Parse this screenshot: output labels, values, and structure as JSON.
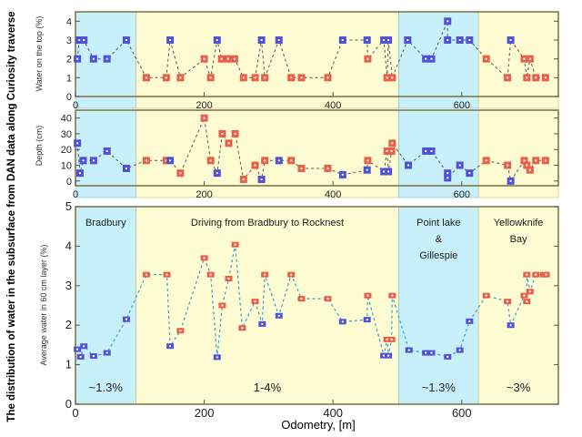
{
  "figure_title": "The distribution of water in the subsurface from DAN data along Curiosity traverse",
  "colors": {
    "wet": "#e8604a",
    "dry": "#5050d8",
    "blue_region": "#c8f0fa",
    "yellow_region": "#fdfbd2",
    "bottom_line": "#3aa0d8",
    "top_line": "#555555"
  },
  "chart_data": [
    {
      "type": "scatter",
      "ylabel": "Water on the top (%)",
      "xlim": [
        0,
        750
      ],
      "ylim": [
        0,
        4.5
      ],
      "xticks": [
        "0",
        "200",
        "400",
        "600"
      ],
      "yticks": [
        "0",
        "1",
        "2",
        "3",
        "4"
      ],
      "points": [
        [
          3,
          2,
          "b"
        ],
        [
          6,
          3,
          "b"
        ],
        [
          13,
          3,
          "b"
        ],
        [
          28,
          2,
          "b"
        ],
        [
          49,
          2,
          "b"
        ],
        [
          79,
          3,
          "b"
        ],
        [
          110,
          1,
          "r"
        ],
        [
          141,
          1,
          "r"
        ],
        [
          147,
          3,
          "b"
        ],
        [
          163,
          1,
          "r"
        ],
        [
          200,
          2,
          "r"
        ],
        [
          210,
          1,
          "r"
        ],
        [
          220,
          3,
          "b"
        ],
        [
          227,
          2,
          "r"
        ],
        [
          237,
          2,
          "r"
        ],
        [
          247,
          2,
          "r"
        ],
        [
          261,
          1,
          "r"
        ],
        [
          279,
          1,
          "r"
        ],
        [
          289,
          3,
          "b"
        ],
        [
          294,
          1,
          "r"
        ],
        [
          316,
          3,
          "b"
        ],
        [
          335,
          1,
          "r"
        ],
        [
          351,
          1,
          "r"
        ],
        [
          392,
          1,
          "r"
        ],
        [
          415,
          3,
          "b"
        ],
        [
          453,
          3,
          "b"
        ],
        [
          454,
          2,
          "r"
        ],
        [
          479,
          3,
          "b"
        ],
        [
          484,
          1,
          "r"
        ],
        [
          486,
          3,
          "b"
        ],
        [
          492,
          1,
          "r"
        ],
        [
          516,
          3,
          "b"
        ],
        [
          544,
          2,
          "b"
        ],
        [
          553,
          2,
          "b"
        ],
        [
          578,
          4,
          "b"
        ],
        [
          578,
          3,
          "b"
        ],
        [
          597,
          3,
          "b"
        ],
        [
          612,
          3,
          "b"
        ],
        [
          638,
          2,
          "r"
        ],
        [
          671,
          1,
          "r"
        ],
        [
          676,
          3,
          "b"
        ],
        [
          697,
          2,
          "r"
        ],
        [
          701,
          1,
          "r"
        ],
        [
          706,
          2,
          "r"
        ],
        [
          715,
          1,
          "r"
        ],
        [
          730,
          1,
          "r"
        ]
      ]
    },
    {
      "type": "scatter",
      "ylabel": "Depth (cm)",
      "xlim": [
        0,
        750
      ],
      "ylim": [
        -3,
        45
      ],
      "xticks": [
        "0",
        "200",
        "400",
        "600"
      ],
      "yticks": [
        "0",
        "10",
        "20",
        "30",
        "40"
      ],
      "points": [
        [
          3,
          24,
          "b"
        ],
        [
          7,
          5,
          "b"
        ],
        [
          12,
          13,
          "b"
        ],
        [
          28,
          13,
          "b"
        ],
        [
          49,
          19,
          "b"
        ],
        [
          79,
          8,
          "b"
        ],
        [
          110,
          13,
          "r"
        ],
        [
          141,
          13,
          "r"
        ],
        [
          147,
          13,
          "b"
        ],
        [
          163,
          5,
          "r"
        ],
        [
          200,
          40,
          "r"
        ],
        [
          210,
          13,
          "r"
        ],
        [
          220,
          5,
          "b"
        ],
        [
          228,
          30,
          "r"
        ],
        [
          238,
          24,
          "r"
        ],
        [
          248,
          30,
          "r"
        ],
        [
          261,
          1,
          "r"
        ],
        [
          279,
          10,
          "r"
        ],
        [
          289,
          1,
          "b"
        ],
        [
          294,
          13,
          "r"
        ],
        [
          316,
          13,
          "b"
        ],
        [
          335,
          13,
          "r"
        ],
        [
          351,
          8,
          "r"
        ],
        [
          392,
          8,
          "r"
        ],
        [
          415,
          4,
          "b"
        ],
        [
          453,
          7,
          "b"
        ],
        [
          454,
          13,
          "r"
        ],
        [
          479,
          6,
          "b"
        ],
        [
          484,
          19,
          "r"
        ],
        [
          486,
          6,
          "b"
        ],
        [
          491,
          19,
          "r"
        ],
        [
          492,
          24,
          "r"
        ],
        [
          517,
          10,
          "b"
        ],
        [
          544,
          19,
          "b"
        ],
        [
          553,
          19,
          "b"
        ],
        [
          578,
          5,
          "b"
        ],
        [
          578,
          2,
          "b"
        ],
        [
          597,
          10,
          "b"
        ],
        [
          612,
          5,
          "b"
        ],
        [
          638,
          13,
          "r"
        ],
        [
          671,
          10,
          "r"
        ],
        [
          676,
          0,
          "b"
        ],
        [
          697,
          13,
          "r"
        ],
        [
          701,
          10,
          "r"
        ],
        [
          706,
          7,
          "r"
        ],
        [
          715,
          13,
          "r"
        ],
        [
          730,
          13,
          "r"
        ]
      ]
    },
    {
      "type": "scatter",
      "xlabel": "Odometry, [m]",
      "ylabel": "Average water in 60 cm layer (%)",
      "xlim": [
        0,
        750
      ],
      "ylim": [
        0,
        5
      ],
      "xticks": [
        "0",
        "200",
        "400",
        "600"
      ],
      "yticks": [
        "0",
        "1",
        "2",
        "3",
        "4",
        "5"
      ],
      "regions": [
        {
          "from": 0,
          "to": 94,
          "kind": "blue",
          "label": "Bradbury",
          "value": "~1.3%"
        },
        {
          "from": 94,
          "to": 502,
          "kind": "yellow",
          "label": "Driving from Bradbury to Rocknest",
          "value": "1-4%"
        },
        {
          "from": 502,
          "to": 626,
          "kind": "blue",
          "label": "Point lake\n&\nGillespie",
          "value": "~1.3%"
        },
        {
          "from": 626,
          "to": 750,
          "kind": "yellow",
          "label": "Yellowknife\nBay",
          "value": "~3%"
        }
      ],
      "points": [
        [
          3,
          1.39,
          "b"
        ],
        [
          8,
          1.2,
          "b"
        ],
        [
          13,
          1.47,
          "b"
        ],
        [
          28,
          1.22,
          "b"
        ],
        [
          49,
          1.3,
          "b"
        ],
        [
          79,
          2.15,
          "b"
        ],
        [
          110,
          3.28,
          "r"
        ],
        [
          142,
          3.28,
          "r"
        ],
        [
          147,
          1.47,
          "b"
        ],
        [
          163,
          1.86,
          "r"
        ],
        [
          200,
          3.7,
          "r"
        ],
        [
          210,
          3.28,
          "r"
        ],
        [
          220,
          1.19,
          "b"
        ],
        [
          228,
          2.5,
          "r"
        ],
        [
          238,
          3.18,
          "r"
        ],
        [
          248,
          4.04,
          "r"
        ],
        [
          259,
          1.93,
          "r"
        ],
        [
          279,
          2.6,
          "r"
        ],
        [
          290,
          2.03,
          "b"
        ],
        [
          294,
          3.28,
          "r"
        ],
        [
          316,
          2.24,
          "b"
        ],
        [
          335,
          3.28,
          "r"
        ],
        [
          351,
          2.67,
          "r"
        ],
        [
          392,
          2.67,
          "r"
        ],
        [
          415,
          2.09,
          "b"
        ],
        [
          453,
          2.14,
          "b"
        ],
        [
          454,
          2.75,
          "r"
        ],
        [
          479,
          1.23,
          "b"
        ],
        [
          484,
          1.64,
          "r"
        ],
        [
          486,
          1.23,
          "b"
        ],
        [
          491,
          1.64,
          "r"
        ],
        [
          492,
          2.75,
          "r"
        ],
        [
          518,
          1.37,
          "b"
        ],
        [
          544,
          1.3,
          "b"
        ],
        [
          553,
          1.3,
          "b"
        ],
        [
          578,
          1.2,
          "b"
        ],
        [
          597,
          1.37,
          "b"
        ],
        [
          612,
          2.1,
          "b"
        ],
        [
          638,
          2.75,
          "r"
        ],
        [
          671,
          2.6,
          "r"
        ],
        [
          676,
          2.0,
          "b"
        ],
        [
          697,
          2.75,
          "r"
        ],
        [
          701,
          2.6,
          "r"
        ],
        [
          701,
          3.28,
          "r"
        ],
        [
          706,
          2.85,
          "r"
        ],
        [
          715,
          3.28,
          "r"
        ],
        [
          727,
          3.28,
          "r"
        ],
        [
          731,
          3.28,
          "r"
        ]
      ]
    }
  ]
}
